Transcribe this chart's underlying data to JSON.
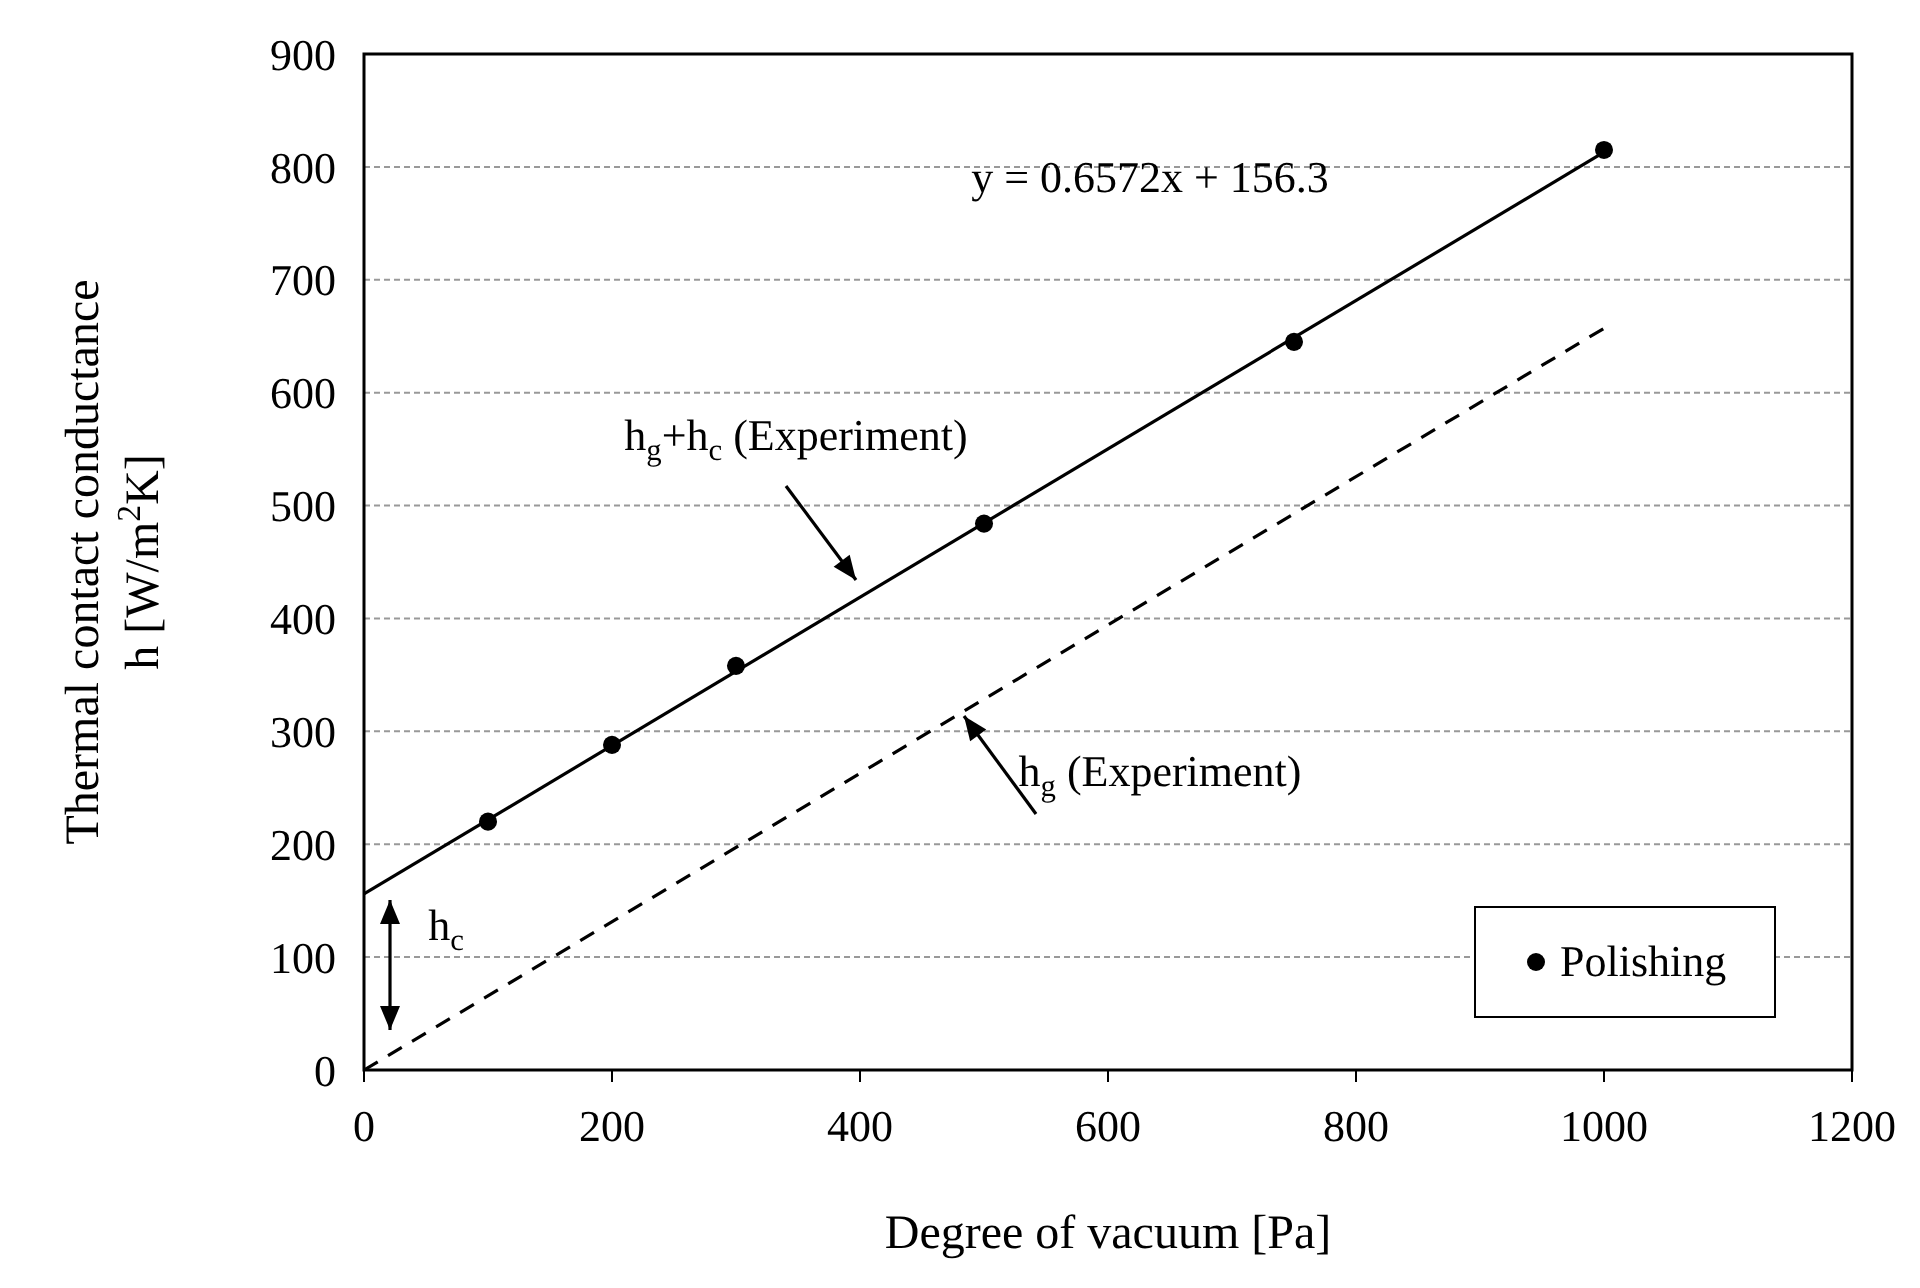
{
  "chart_data": {
    "type": "scatter",
    "xlabel": "Degree of vacuum [Pa]",
    "ylabel": "Thermal contact conductance\nh [W/m$^{2}$K]",
    "xlim": [
      0,
      1200
    ],
    "xticks": [
      0,
      200,
      400,
      600,
      800,
      1000,
      1200
    ],
    "ylim": [
      0,
      900
    ],
    "yticks": [
      0,
      100,
      200,
      300,
      400,
      500,
      600,
      700,
      800,
      900
    ],
    "grid": "y",
    "legend": "bottom right",
    "marker": "circle",
    "series": [
      {
        "name": "Polishing",
        "color": "#000000",
        "x": [
          100,
          200,
          300,
          500,
          750,
          1000
        ],
        "values": [
          220,
          288,
          358,
          484,
          645,
          815
        ]
      },
      {
        "type": "line",
        "color": "#000000",
        "line_style": "solid",
        "marker": "none",
        "x": [
          0,
          1000
        ],
        "values": [
          156,
          813
        ]
      },
      {
        "type": "line",
        "color": "#000000",
        "line_style": "dashed",
        "marker": "none",
        "x": [
          0,
          1000
        ],
        "values": [
          0,
          657
        ]
      }
    ],
    "annotations": [
      "y = 0.6572x + 156.3",
      "h$_{g}$+h$_{c}$ (Experiment)",
      "h$_{g}$ (Experiment)",
      "h$_{c}$"
    ]
  }
}
